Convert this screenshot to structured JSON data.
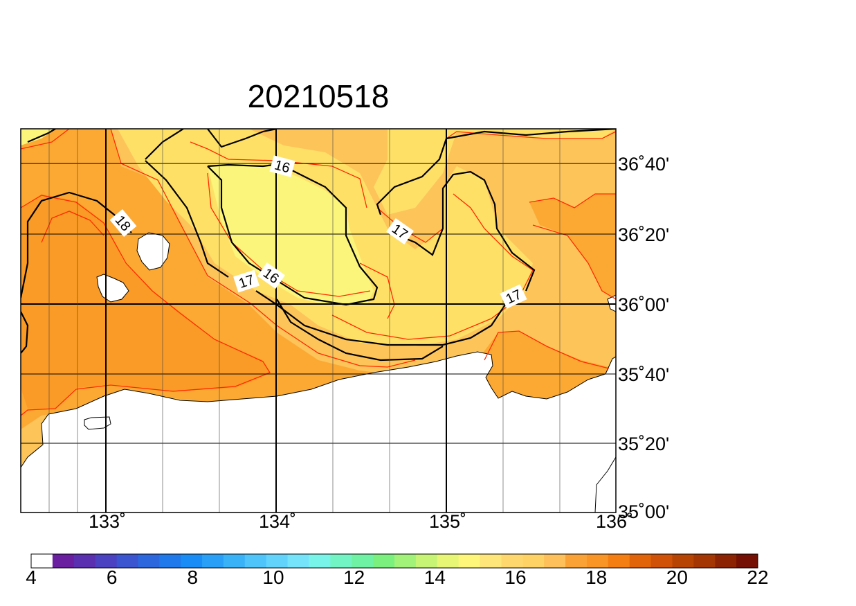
{
  "title": "20210518",
  "lat_labels": [
    "36˚40'",
    "36˚20'",
    "36˚00'",
    "35˚40'",
    "35˚20'",
    "35˚00'"
  ],
  "lon_labels": [
    "133˚",
    "134˚",
    "135˚",
    "136˚"
  ],
  "contour_labels": [
    "16",
    "17",
    "18",
    "16",
    "17",
    "16",
    "17",
    "17"
  ],
  "colorbar": {
    "tick_labels": [
      "4",
      "6",
      "8",
      "10",
      "12",
      "14",
      "16",
      "18",
      "20",
      "22"
    ],
    "colors": [
      "#ffffff",
      "#6a1ea0",
      "#5a2fb0",
      "#4a42c0",
      "#3b54cf",
      "#2c67de",
      "#1f79ea",
      "#1a8cf5",
      "#2a9ff7",
      "#3ab2f8",
      "#4fc4fa",
      "#62d4fb",
      "#75e4fb",
      "#79f4e8",
      "#72f4c4",
      "#70f2a4",
      "#7cf07e",
      "#a2f27a",
      "#c8f476",
      "#e8f676",
      "#fdf67a",
      "#fee67a",
      "#fed86e",
      "#fed264",
      "#fdc05a",
      "#fba236",
      "#f99426",
      "#f57e12",
      "#e2640a",
      "#cf5208",
      "#b84404",
      "#a43604",
      "#8c2404",
      "#741004"
    ]
  },
  "field_colors": {
    "band_15": "#fbf57c",
    "band_16": "#fee067",
    "band_17": "#fdc45a",
    "band_18": "#fca934",
    "band_19": "#f99b26",
    "contour_major": "#000000",
    "contour_minor": "#ff2a00"
  }
}
